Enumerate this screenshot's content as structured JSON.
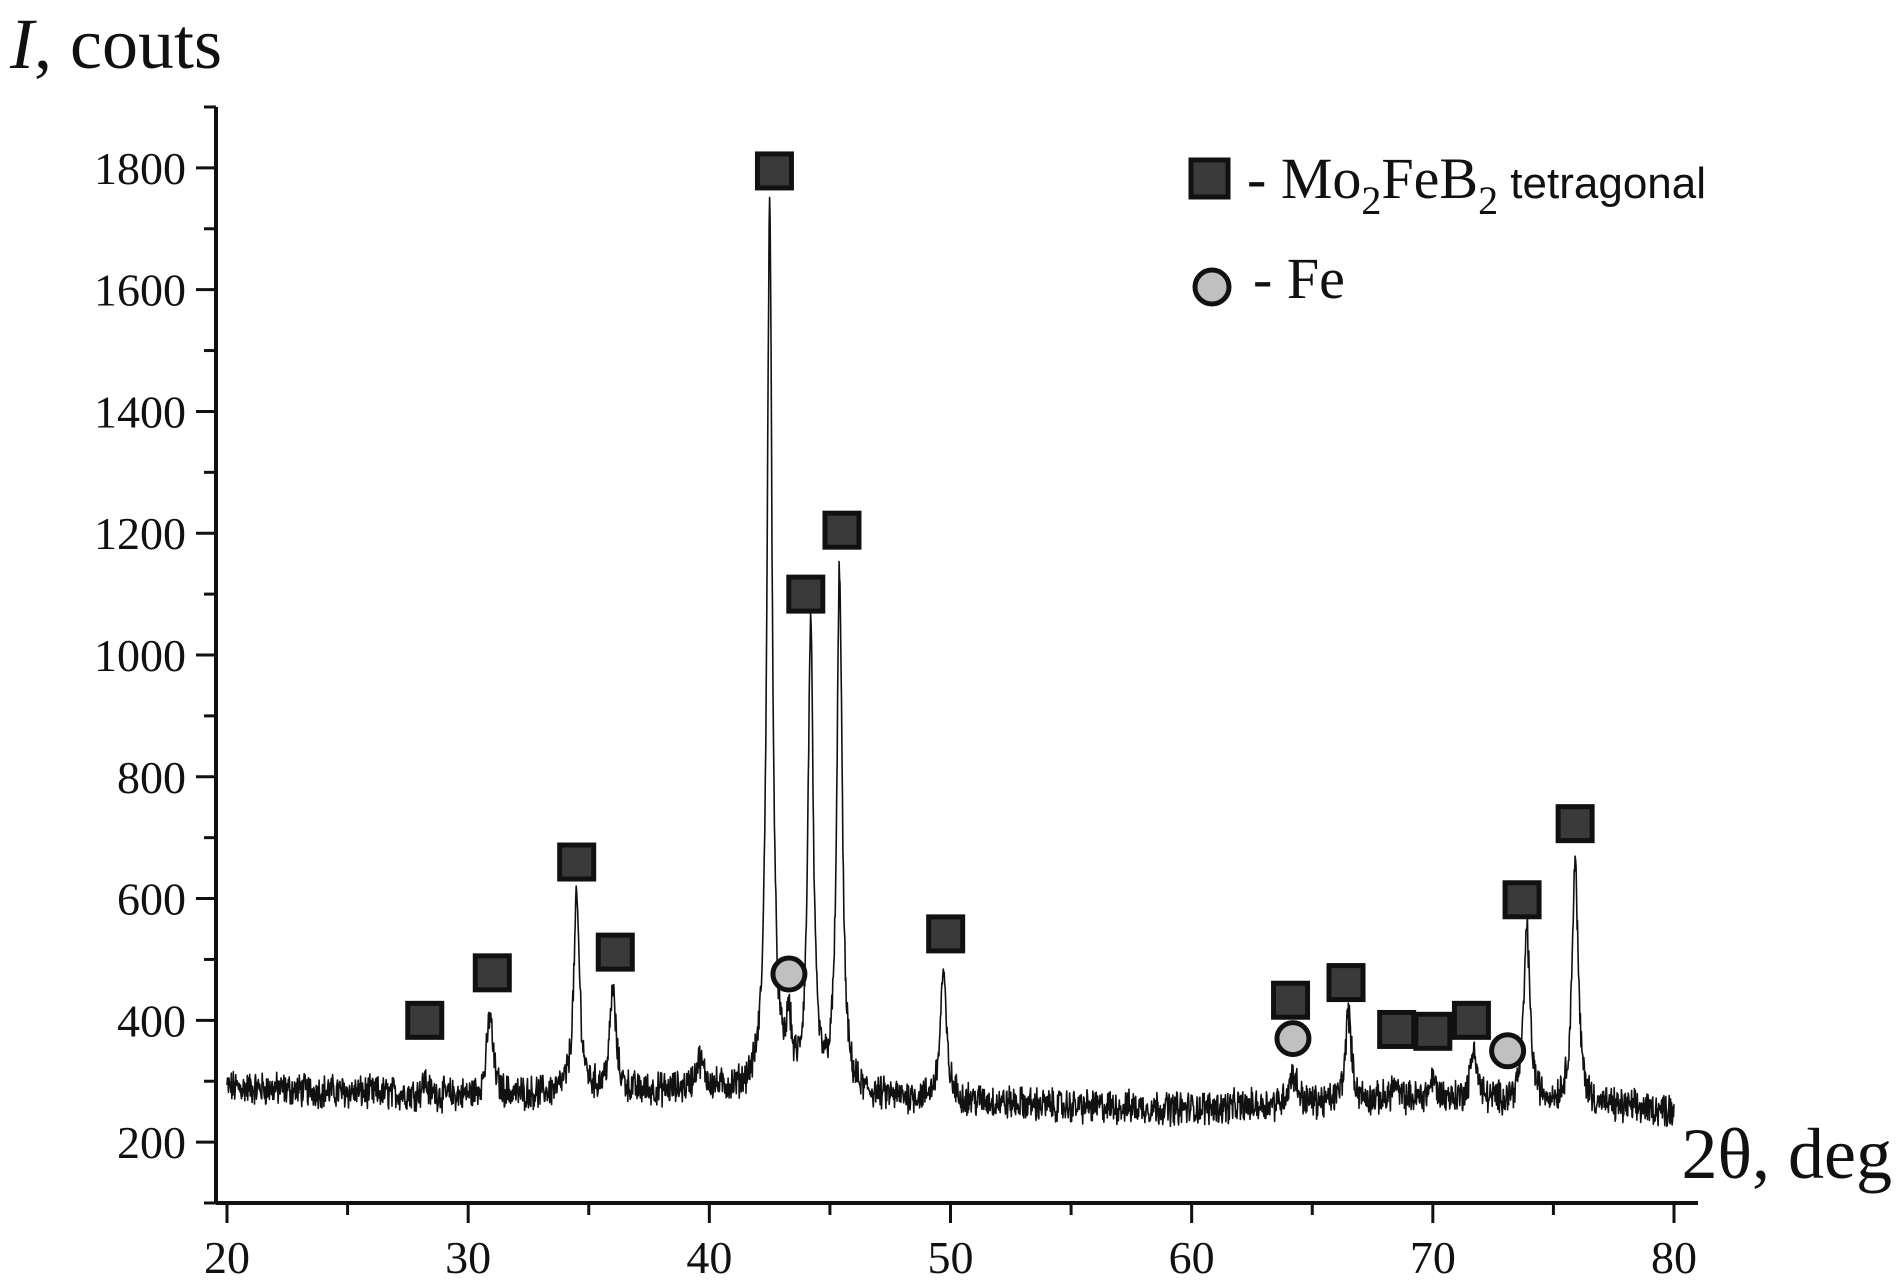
{
  "chart_data": {
    "type": "line",
    "title": "",
    "ylabel_italic": "I",
    "ylabel_rest": ", couts",
    "xlabel": "2θ, deg",
    "xlim": [
      20,
      80
    ],
    "ylim": [
      100,
      1900
    ],
    "x_ticks": [
      20,
      30,
      40,
      50,
      60,
      70,
      80
    ],
    "y_ticks": [
      200,
      400,
      600,
      800,
      1000,
      1200,
      1400,
      1600,
      1800
    ],
    "baseline": [
      [
        20,
        290
      ],
      [
        25,
        282
      ],
      [
        30,
        275
      ],
      [
        35,
        280
      ],
      [
        40,
        285
      ],
      [
        45,
        275
      ],
      [
        50,
        268
      ],
      [
        55,
        258
      ],
      [
        60,
        255
      ],
      [
        65,
        262
      ],
      [
        70,
        272
      ],
      [
        75,
        262
      ],
      [
        80,
        252
      ]
    ],
    "peaks": [
      {
        "x": 28.2,
        "height": 300,
        "width": 0.12
      },
      {
        "x": 30.9,
        "height": 410,
        "width": 0.15
      },
      {
        "x": 34.5,
        "height": 595,
        "width": 0.15
      },
      {
        "x": 36.0,
        "height": 448,
        "width": 0.15
      },
      {
        "x": 39.6,
        "height": 330,
        "width": 0.22
      },
      {
        "x": 42.5,
        "height": 1725,
        "width": 0.13
      },
      {
        "x": 43.3,
        "height": 375,
        "width": 0.12
      },
      {
        "x": 44.2,
        "height": 1040,
        "width": 0.13
      },
      {
        "x": 45.4,
        "height": 1135,
        "width": 0.13
      },
      {
        "x": 49.7,
        "height": 478,
        "width": 0.15
      },
      {
        "x": 64.2,
        "height": 310,
        "width": 0.22
      },
      {
        "x": 66.5,
        "height": 412,
        "width": 0.15
      },
      {
        "x": 68.4,
        "height": 292,
        "width": 0.15
      },
      {
        "x": 70.0,
        "height": 302,
        "width": 0.15
      },
      {
        "x": 71.7,
        "height": 355,
        "width": 0.15
      },
      {
        "x": 73.9,
        "height": 552,
        "width": 0.15
      },
      {
        "x": 75.9,
        "height": 662,
        "width": 0.15
      }
    ],
    "series": [
      {
        "name": "Mo2FeB2 tetragonal",
        "marker": "square",
        "color": "#3a3a3a",
        "points": [
          [
            28.2,
            400
          ],
          [
            31.0,
            478
          ],
          [
            34.5,
            660
          ],
          [
            36.1,
            512
          ],
          [
            42.7,
            1795
          ],
          [
            44.0,
            1100
          ],
          [
            45.5,
            1205
          ],
          [
            49.8,
            542
          ],
          [
            64.1,
            433
          ],
          [
            66.4,
            462
          ],
          [
            68.5,
            385
          ],
          [
            70.0,
            382
          ],
          [
            71.6,
            400
          ],
          [
            73.7,
            598
          ],
          [
            75.9,
            723
          ]
        ]
      },
      {
        "name": "Fe",
        "marker": "circle",
        "color": "#c0c0c0",
        "points": [
          [
            43.3,
            476
          ],
          [
            64.2,
            370
          ],
          [
            73.1,
            350
          ]
        ]
      }
    ],
    "legend": {
      "placement": "top-right",
      "square_prefix": "- Mo",
      "square_sub1": "2",
      "square_mid": "FeB",
      "square_sub2": "2",
      "square_suffix": " tetragonal",
      "circle_label": "- Fe"
    }
  }
}
